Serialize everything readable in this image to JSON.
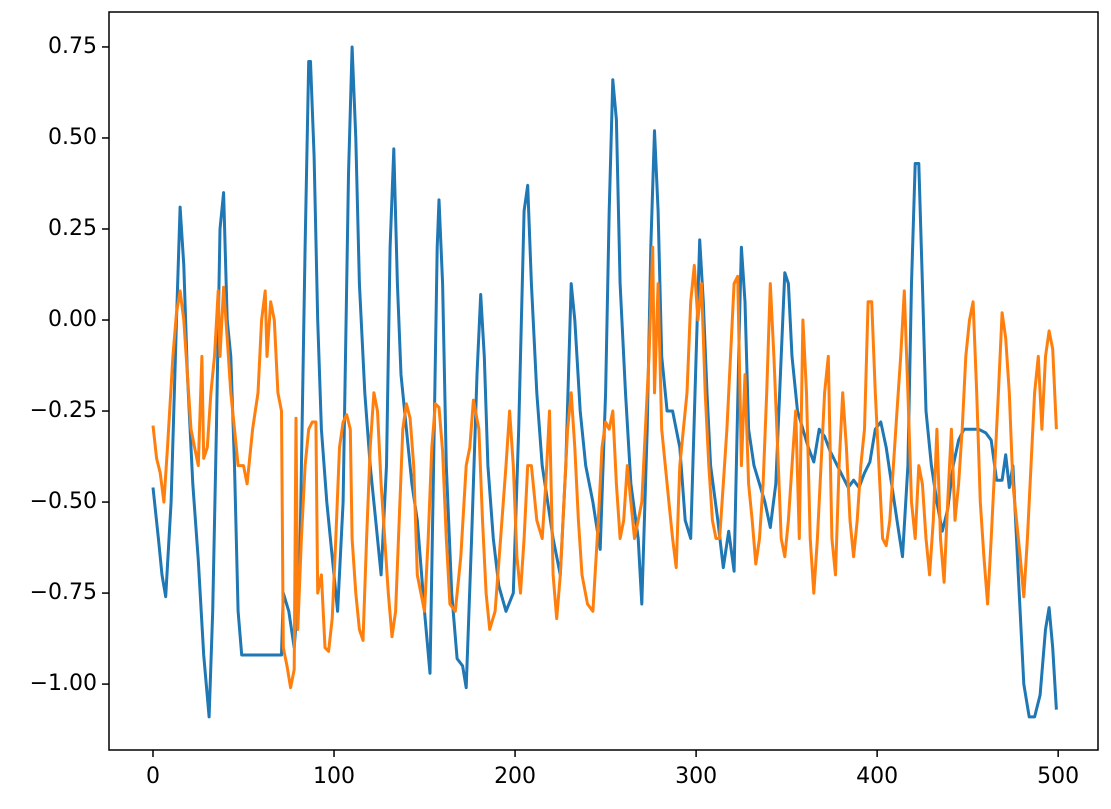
{
  "chart_data": {
    "type": "line",
    "xlim": [
      -24.3,
      522
    ],
    "ylim": [
      -1.181,
      0.846
    ],
    "xticks": [
      0,
      100,
      200,
      300,
      400,
      500
    ],
    "yticks": [
      {
        "value": -1.0,
        "label": "−1.00"
      },
      {
        "value": -0.75,
        "label": "−0.75"
      },
      {
        "value": -0.5,
        "label": "−0.50"
      },
      {
        "value": -0.25,
        "label": "−0.25"
      },
      {
        "value": 0,
        "label": "0.00"
      },
      {
        "value": 0.25,
        "label": "0.25"
      },
      {
        "value": 0.5,
        "label": "0.50"
      },
      {
        "value": 0.75,
        "label": "0.75"
      }
    ],
    "series": [
      {
        "color": "#1f77b4",
        "x": [
          0,
          3,
          5,
          7,
          10,
          13,
          15,
          17,
          19,
          22,
          25,
          28,
          31,
          33,
          35,
          37,
          39,
          41,
          43,
          45,
          47,
          49,
          52,
          71,
          72,
          75,
          78,
          81,
          84,
          86,
          87,
          89,
          91,
          93,
          96,
          99,
          102,
          105,
          108,
          110,
          112,
          114,
          117,
          120,
          123,
          126,
          129,
          131,
          133,
          135,
          137,
          140,
          143,
          146,
          150,
          153,
          155,
          157,
          158,
          160,
          162,
          165,
          168,
          171,
          173,
          176,
          179,
          181,
          183,
          185,
          188,
          191,
          195,
          199,
          202,
          205,
          207,
          209,
          212,
          215,
          218,
          221,
          225,
          228,
          231,
          233,
          236,
          239,
          243,
          247,
          250,
          252,
          254,
          256,
          258,
          261,
          264,
          268,
          270,
          273,
          275,
          277,
          279,
          281,
          284,
          287,
          291,
          294,
          297,
          300,
          302,
          304,
          306,
          308,
          312,
          315,
          318,
          321,
          324,
          325,
          327,
          329,
          332,
          335,
          338,
          341,
          344,
          347,
          349,
          351,
          353,
          356,
          359,
          362,
          365,
          368,
          371,
          374,
          377,
          380,
          384,
          387,
          390,
          393,
          396,
          399,
          402,
          405,
          408,
          411,
          414,
          417,
          419,
          421,
          423,
          425,
          427,
          430,
          433,
          436,
          439,
          442,
          445,
          448,
          452,
          456,
          460,
          463,
          466,
          469,
          471,
          473,
          475,
          478,
          481,
          484,
          487,
          490,
          493,
          495,
          497,
          499
        ],
        "values": [
          -0.46,
          -0.6,
          -0.7,
          -0.76,
          -0.5,
          0.0,
          0.31,
          0.15,
          -0.15,
          -0.45,
          -0.66,
          -0.92,
          -1.09,
          -0.8,
          -0.3,
          0.25,
          0.35,
          0.0,
          -0.1,
          -0.4,
          -0.8,
          -0.92,
          -0.92,
          -0.92,
          -0.75,
          -0.8,
          -0.9,
          -0.7,
          0.2,
          0.71,
          0.71,
          0.45,
          0.0,
          -0.3,
          -0.5,
          -0.65,
          -0.8,
          -0.5,
          0.4,
          0.75,
          0.5,
          0.1,
          -0.2,
          -0.4,
          -0.55,
          -0.7,
          -0.4,
          0.2,
          0.47,
          0.1,
          -0.15,
          -0.3,
          -0.45,
          -0.55,
          -0.8,
          -0.97,
          -0.4,
          0.2,
          0.33,
          0.1,
          -0.4,
          -0.75,
          -0.93,
          -0.95,
          -1.01,
          -0.6,
          -0.15,
          0.07,
          -0.1,
          -0.4,
          -0.6,
          -0.73,
          -0.8,
          -0.75,
          -0.3,
          0.3,
          0.37,
          0.1,
          -0.2,
          -0.4,
          -0.5,
          -0.6,
          -0.7,
          -0.4,
          0.1,
          0.0,
          -0.25,
          -0.4,
          -0.5,
          -0.63,
          -0.2,
          0.3,
          0.66,
          0.55,
          0.1,
          -0.2,
          -0.45,
          -0.6,
          -0.78,
          -0.3,
          0.2,
          0.52,
          0.3,
          -0.1,
          -0.25,
          -0.25,
          -0.35,
          -0.55,
          -0.6,
          -0.1,
          0.22,
          0.05,
          -0.2,
          -0.4,
          -0.55,
          -0.68,
          -0.58,
          -0.69,
          0.0,
          0.2,
          0.05,
          -0.3,
          -0.4,
          -0.45,
          -0.5,
          -0.57,
          -0.45,
          -0.1,
          0.13,
          0.1,
          -0.1,
          -0.25,
          -0.3,
          -0.35,
          -0.39,
          -0.3,
          -0.32,
          -0.36,
          -0.39,
          -0.42,
          -0.46,
          -0.44,
          -0.46,
          -0.42,
          -0.39,
          -0.3,
          -0.28,
          -0.35,
          -0.45,
          -0.55,
          -0.65,
          -0.4,
          0.1,
          0.43,
          0.43,
          0.1,
          -0.25,
          -0.4,
          -0.5,
          -0.58,
          -0.52,
          -0.4,
          -0.33,
          -0.3,
          -0.3,
          -0.3,
          -0.31,
          -0.33,
          -0.44,
          -0.44,
          -0.37,
          -0.46,
          -0.4,
          -0.7,
          -1.0,
          -1.09,
          -1.09,
          -1.03,
          -0.85,
          -0.79,
          -0.9,
          -1.07
        ]
      },
      {
        "color": "#ff7f0e",
        "x": [
          0,
          2,
          4,
          6,
          8,
          11,
          13,
          15,
          17,
          19,
          21,
          23,
          25,
          27,
          28,
          30,
          32,
          34,
          36,
          37,
          39,
          41,
          43,
          45,
          47,
          50,
          52,
          55,
          58,
          60,
          62,
          63,
          65,
          67,
          69,
          71,
          72,
          74,
          76,
          78,
          79,
          80,
          82,
          84,
          86,
          88,
          90,
          91,
          93,
          95,
          97,
          99,
          101,
          103,
          105,
          107,
          109,
          110,
          112,
          114,
          116,
          118,
          120,
          122,
          124,
          126,
          128,
          130,
          132,
          134,
          136,
          138,
          140,
          142,
          144,
          146,
          148,
          150,
          152,
          154,
          156,
          158,
          160,
          162,
          164,
          167,
          170,
          173,
          175,
          177,
          180,
          182,
          184,
          186,
          189,
          192,
          195,
          197,
          199,
          201,
          203,
          205,
          207,
          209,
          212,
          215,
          217,
          219,
          221,
          223,
          225,
          227,
          229,
          231,
          233,
          235,
          237,
          240,
          243,
          246,
          248,
          250,
          252,
          254,
          256,
          258,
          260,
          262,
          264,
          266,
          268,
          270,
          272,
          274,
          276,
          277,
          279,
          281,
          283,
          285,
          287,
          289,
          291,
          293,
          295,
          297,
          299,
          301,
          303,
          305,
          307,
          309,
          311,
          313,
          315,
          317,
          319,
          321,
          323,
          325,
          327,
          329,
          331,
          333,
          335,
          337,
          339,
          341,
          343,
          345,
          347,
          349,
          351,
          353,
          355,
          357,
          359,
          361,
          363,
          365,
          367,
          369,
          371,
          373,
          375,
          377,
          379,
          381,
          383,
          385,
          387,
          389,
          391,
          393,
          395,
          397,
          399,
          401,
          403,
          405,
          407,
          409,
          411,
          413,
          415,
          417,
          419,
          421,
          423,
          425,
          427,
          429,
          431,
          433,
          435,
          437,
          439,
          441,
          443,
          445,
          447,
          449,
          451,
          453,
          455,
          457,
          459,
          461,
          463,
          465,
          467,
          469,
          471,
          473,
          475,
          477,
          479,
          481,
          483,
          485,
          487,
          489,
          491,
          493,
          495,
          497,
          499
        ],
        "values": [
          -0.29,
          -0.38,
          -0.42,
          -0.5,
          -0.35,
          -0.1,
          0.02,
          0.08,
          0.0,
          -0.15,
          -0.3,
          -0.35,
          -0.4,
          -0.1,
          -0.38,
          -0.35,
          -0.2,
          -0.1,
          0.08,
          -0.1,
          0.09,
          -0.05,
          -0.2,
          -0.3,
          -0.4,
          -0.4,
          -0.45,
          -0.3,
          -0.2,
          0.0,
          0.08,
          -0.1,
          0.05,
          0.0,
          -0.2,
          -0.25,
          -0.9,
          -0.95,
          -1.01,
          -0.96,
          -0.27,
          -0.85,
          -0.6,
          -0.4,
          -0.3,
          -0.28,
          -0.28,
          -0.75,
          -0.7,
          -0.9,
          -0.91,
          -0.82,
          -0.6,
          -0.35,
          -0.28,
          -0.26,
          -0.3,
          -0.6,
          -0.75,
          -0.85,
          -0.88,
          -0.6,
          -0.35,
          -0.2,
          -0.25,
          -0.45,
          -0.6,
          -0.75,
          -0.87,
          -0.8,
          -0.55,
          -0.3,
          -0.23,
          -0.27,
          -0.4,
          -0.7,
          -0.75,
          -0.8,
          -0.6,
          -0.35,
          -0.23,
          -0.24,
          -0.36,
          -0.6,
          -0.78,
          -0.8,
          -0.65,
          -0.4,
          -0.35,
          -0.22,
          -0.3,
          -0.55,
          -0.75,
          -0.85,
          -0.8,
          -0.6,
          -0.4,
          -0.25,
          -0.4,
          -0.65,
          -0.75,
          -0.6,
          -0.4,
          -0.4,
          -0.55,
          -0.6,
          -0.45,
          -0.25,
          -0.7,
          -0.82,
          -0.7,
          -0.5,
          -0.3,
          -0.2,
          -0.35,
          -0.55,
          -0.7,
          -0.78,
          -0.8,
          -0.55,
          -0.35,
          -0.28,
          -0.3,
          -0.25,
          -0.45,
          -0.6,
          -0.55,
          -0.4,
          -0.5,
          -0.6,
          -0.55,
          -0.5,
          -0.3,
          -0.1,
          0.2,
          -0.2,
          0.1,
          -0.3,
          -0.4,
          -0.5,
          -0.6,
          -0.68,
          -0.4,
          -0.3,
          -0.2,
          0.05,
          0.15,
          0.0,
          0.1,
          -0.2,
          -0.4,
          -0.55,
          -0.6,
          -0.6,
          -0.45,
          -0.3,
          -0.1,
          0.1,
          0.12,
          -0.4,
          -0.15,
          -0.45,
          -0.55,
          -0.67,
          -0.6,
          -0.45,
          -0.2,
          0.1,
          -0.1,
          -0.35,
          -0.6,
          -0.65,
          -0.55,
          -0.4,
          -0.25,
          -0.6,
          0.0,
          -0.2,
          -0.6,
          -0.75,
          -0.6,
          -0.4,
          -0.2,
          -0.1,
          -0.6,
          -0.7,
          -0.4,
          -0.2,
          -0.35,
          -0.55,
          -0.65,
          -0.55,
          -0.4,
          -0.3,
          0.05,
          0.05,
          -0.2,
          -0.4,
          -0.6,
          -0.62,
          -0.55,
          -0.4,
          -0.25,
          -0.1,
          0.08,
          -0.2,
          -0.5,
          -0.6,
          -0.4,
          -0.45,
          -0.6,
          -0.7,
          -0.55,
          -0.3,
          -0.6,
          -0.72,
          -0.5,
          -0.3,
          -0.55,
          -0.45,
          -0.3,
          -0.1,
          0.0,
          0.05,
          -0.2,
          -0.5,
          -0.65,
          -0.78,
          -0.6,
          -0.4,
          -0.2,
          0.02,
          -0.05,
          -0.2,
          -0.45,
          -0.55,
          -0.65,
          -0.76,
          -0.6,
          -0.4,
          -0.2,
          -0.1,
          -0.3,
          -0.1,
          -0.03,
          -0.08,
          -0.3
        ]
      }
    ]
  }
}
